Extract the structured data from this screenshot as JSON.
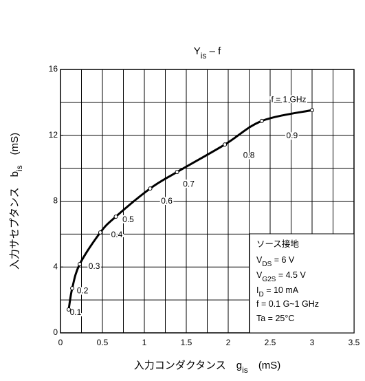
{
  "chart_data": {
    "type": "line",
    "title": [
      {
        "text": "Y"
      },
      {
        "text": "is",
        "sub": true
      },
      {
        "text": " – f"
      }
    ],
    "x_label": [
      {
        "text": "入力コンダクタンス　g"
      },
      {
        "text": "is",
        "sub": true
      },
      {
        "text": "　(mS)"
      }
    ],
    "y_label": [
      {
        "text": "入力サセプタンス　b"
      },
      {
        "text": "is",
        "sub": true
      },
      {
        "text": "　(mS)"
      }
    ],
    "x": [
      0.098,
      0.14,
      0.23,
      0.475,
      0.66,
      1.07,
      1.39,
      1.96,
      2.4,
      3.0
    ],
    "values": [
      1.42,
      2.71,
      4.18,
      6.1,
      7.06,
      8.77,
      9.77,
      11.44,
      12.87,
      13.53
    ],
    "point_labels": [
      "0.1",
      "0.2",
      "0.3",
      "0.4",
      "0.5",
      "0.6",
      "0.7",
      "0.8",
      "0.9",
      "f = 1 GHz"
    ],
    "color": "#000000",
    "xlim": [
      0,
      3.5
    ],
    "ylim": [
      0,
      16
    ],
    "xticks": [
      0,
      0.5,
      1,
      1.5,
      2,
      2.5,
      3,
      3.5
    ],
    "yticks": [
      0,
      4,
      8,
      12,
      16
    ],
    "xgrid": [
      0.25,
      0.5,
      0.75,
      1,
      1.25,
      1.5,
      1.75,
      2,
      2.25,
      2.5,
      2.75,
      3,
      3.25
    ],
    "ygrid": [
      2,
      4,
      6,
      8,
      10,
      12,
      14
    ],
    "conditions": [
      [
        {
          "text": "ソース接地"
        }
      ],
      [
        {
          "text": "V"
        },
        {
          "text": "DS",
          "sub": true
        },
        {
          "text": " = 6 V"
        }
      ],
      [
        {
          "text": "V"
        },
        {
          "text": "G2S",
          "sub": true
        },
        {
          "text": " = 4.5 V"
        }
      ],
      [
        {
          "text": "I"
        },
        {
          "text": "D",
          "sub": true
        },
        {
          "text": " = 10 mA"
        }
      ],
      [
        {
          "text": "f = 0.1 G~1 GHz"
        }
      ],
      [
        {
          "text": "Ta = 25°C"
        }
      ]
    ]
  }
}
